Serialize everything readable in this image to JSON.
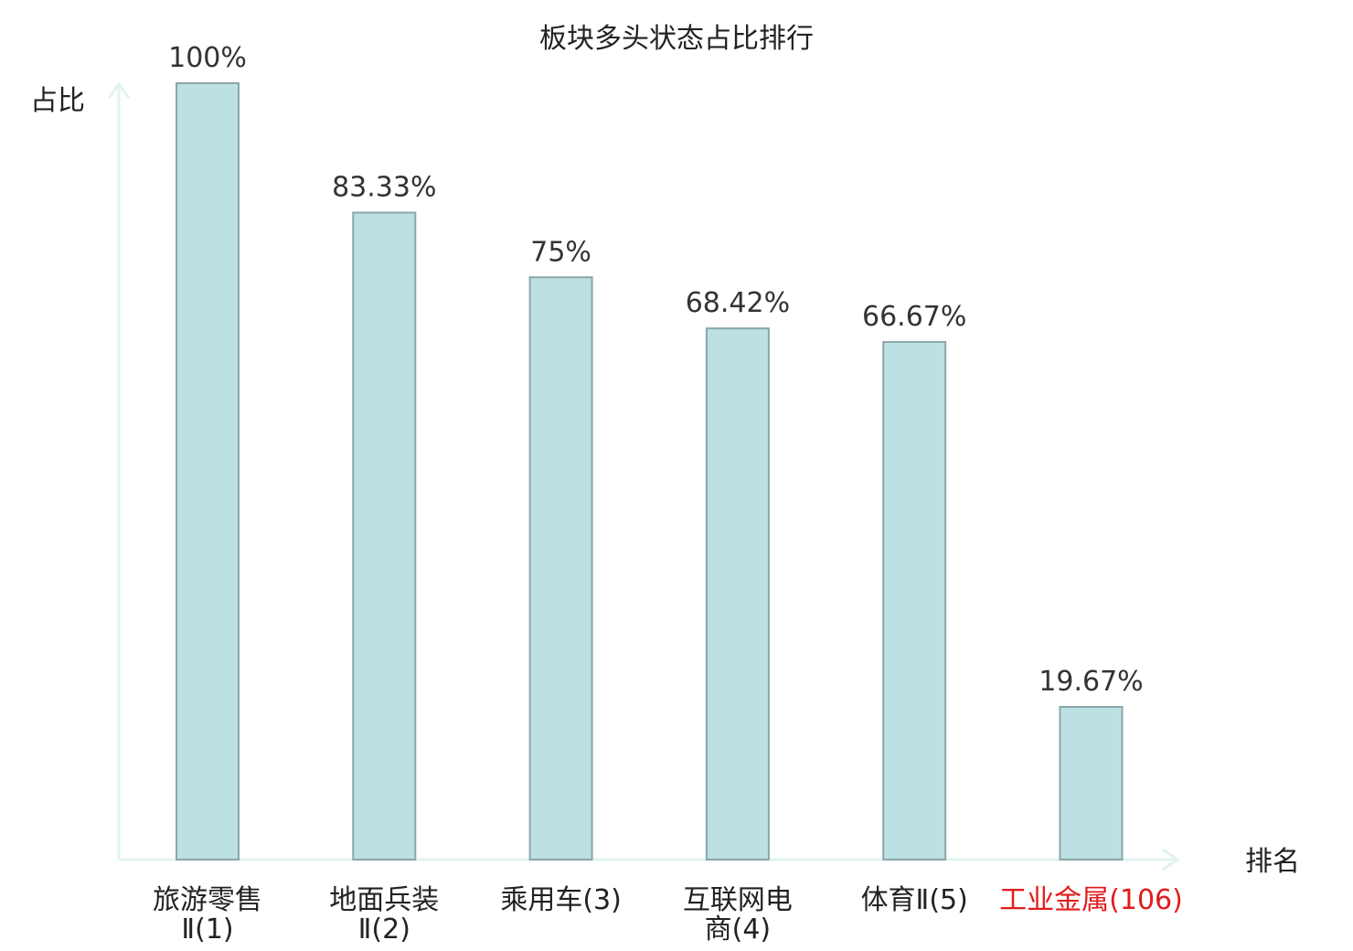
{
  "chart_data": {
    "type": "bar",
    "title": "板块多头状态占比排行",
    "ylabel": "占比",
    "xlabel": "排名",
    "ylim": [
      0,
      100
    ],
    "grid": false,
    "categories": [
      {
        "lines": [
          "旅游零售",
          "Ⅱ(1)"
        ],
        "highlight": false
      },
      {
        "lines": [
          "地面兵装",
          "Ⅱ(2)"
        ],
        "highlight": false
      },
      {
        "lines": [
          "乘用车(3)"
        ],
        "highlight": false
      },
      {
        "lines": [
          "互联网电",
          "商(4)"
        ],
        "highlight": false
      },
      {
        "lines": [
          "体育Ⅱ(5)"
        ],
        "highlight": false
      },
      {
        "lines": [
          "工业金属(106)"
        ],
        "highlight": true
      }
    ],
    "values": [
      100,
      83.33,
      75,
      68.42,
      66.67,
      19.67
    ],
    "labels": [
      "100%",
      "83.33%",
      "75%",
      "68.42%",
      "66.67%",
      "19.67%"
    ],
    "colors": {
      "bar_fill": "#bde0e3",
      "bar_stroke": "#8aa7aa",
      "axis": "#e2f3ef",
      "text": "#222222",
      "highlight": "#e01c1c"
    }
  }
}
